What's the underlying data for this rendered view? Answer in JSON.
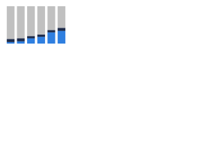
{
  "chart_data": {
    "type": "stacked_bar",
    "categories": [
      null,
      null,
      null,
      null,
      null,
      null
    ],
    "series": [
      {
        "color": "#2f7fe0",
        "values": [
          4,
          6,
          14,
          18,
          30,
          34
        ]
      },
      {
        "color": "#1c2a4a",
        "values": [
          8,
          8,
          6,
          6,
          6,
          8
        ]
      },
      {
        "color": "#c0c0c0",
        "values": [
          88,
          86,
          80,
          76,
          64,
          58
        ]
      }
    ],
    "ylim": [
      0,
      100
    ]
  }
}
